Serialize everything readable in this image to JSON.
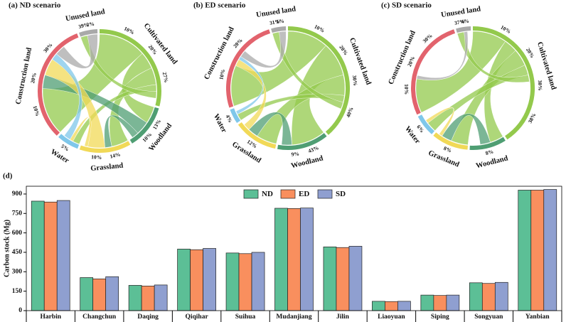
{
  "chart_data": [
    {
      "type": "chord",
      "title": "(a) ND scenario",
      "sectors": [
        {
          "name": "Cultivated land",
          "color": "#93c94c",
          "value": 30,
          "tick_labels": [
            "10%",
            "20%",
            "27%"
          ]
        },
        {
          "name": "Woodland",
          "color": "#4f9e73",
          "value": 12,
          "tick_labels": [
            "13%",
            "10%"
          ]
        },
        {
          "name": "Grassland",
          "color": "#f1d957",
          "value": 14,
          "tick_labels": [
            "14%",
            "10%"
          ]
        },
        {
          "name": "Water",
          "color": "#7fc7ea",
          "value": 6,
          "tick_labels": [
            "5%"
          ]
        },
        {
          "name": "Construction land",
          "color": "#e2636d",
          "value": 33,
          "tick_labels": [
            "10%",
            "20%",
            "30%"
          ]
        },
        {
          "name": "Unused land",
          "color": "#a9a9a9",
          "value": 5,
          "tick_labels": [
            "39%",
            "2%"
          ]
        }
      ],
      "flows": [
        {
          "from": 0,
          "to": 4,
          "value": 14
        },
        {
          "from": 0,
          "to": 1,
          "value": 5
        },
        {
          "from": 0,
          "to": 2,
          "value": 5
        },
        {
          "from": 0,
          "to": 3,
          "value": 2
        },
        {
          "from": 0,
          "to": 5,
          "value": 2
        },
        {
          "from": 1,
          "to": 4,
          "value": 4
        },
        {
          "from": 1,
          "to": 2,
          "value": 2
        },
        {
          "from": 2,
          "to": 4,
          "value": 5
        },
        {
          "from": 2,
          "to": 3,
          "value": 1
        },
        {
          "from": 3,
          "to": 4,
          "value": 2
        },
        {
          "from": 5,
          "to": 4,
          "value": 3
        }
      ]
    },
    {
      "type": "chord",
      "title": "(b) ED scenario",
      "sectors": [
        {
          "name": "Cultivated land",
          "color": "#93c94c",
          "value": 40,
          "tick_labels": [
            "10%",
            "20%",
            "30%",
            "40%"
          ]
        },
        {
          "name": "Woodland",
          "color": "#4f9e73",
          "value": 14,
          "tick_labels": [
            "43%",
            "9%"
          ]
        },
        {
          "name": "Grassland",
          "color": "#f1d957",
          "value": 12,
          "tick_labels": [
            "12%"
          ]
        },
        {
          "name": "Water",
          "color": "#7fc7ea",
          "value": 4,
          "tick_labels": [
            "4%"
          ]
        },
        {
          "name": "Construction land",
          "color": "#e2636d",
          "value": 26,
          "tick_labels": [
            "10%",
            "20%"
          ]
        },
        {
          "name": "Unused land",
          "color": "#a9a9a9",
          "value": 4,
          "tick_labels": [
            "31%",
            "1%"
          ]
        }
      ],
      "flows": [
        {
          "from": 0,
          "to": 4,
          "value": 12
        },
        {
          "from": 0,
          "to": 1,
          "value": 10
        },
        {
          "from": 0,
          "to": 2,
          "value": 6
        },
        {
          "from": 0,
          "to": 3,
          "value": 2
        },
        {
          "from": 0,
          "to": 5,
          "value": 2
        },
        {
          "from": 1,
          "to": 2,
          "value": 3
        },
        {
          "from": 2,
          "to": 4,
          "value": 2
        },
        {
          "from": 3,
          "to": 4,
          "value": 1
        },
        {
          "from": 5,
          "to": 4,
          "value": 2
        }
      ]
    },
    {
      "type": "chord",
      "title": "(c) SD scenario",
      "sectors": [
        {
          "name": "Cultivated land",
          "color": "#93c94c",
          "value": 42,
          "tick_labels": [
            "10%",
            "20%",
            "30%",
            "38%"
          ]
        },
        {
          "name": "Woodland",
          "color": "#4f9e73",
          "value": 10,
          "tick_labels": [
            "8%"
          ]
        },
        {
          "name": "Grassland",
          "color": "#f1d957",
          "value": 10,
          "tick_labels": [
            "8%"
          ]
        },
        {
          "name": "Water",
          "color": "#7fc7ea",
          "value": 6,
          "tick_labels": [
            "6%"
          ]
        },
        {
          "name": "Construction land",
          "color": "#e2636d",
          "value": 28,
          "tick_labels": [
            "10%",
            "20%",
            "30%"
          ]
        },
        {
          "name": "Unused land",
          "color": "#a9a9a9",
          "value": 4,
          "tick_labels": [
            "37%",
            "4%"
          ]
        }
      ],
      "flows": [
        {
          "from": 0,
          "to": 4,
          "value": 10
        },
        {
          "from": 0,
          "to": 1,
          "value": 4
        },
        {
          "from": 0,
          "to": 2,
          "value": 5
        },
        {
          "from": 0,
          "to": 3,
          "value": 3
        },
        {
          "from": 0,
          "to": 5,
          "value": 2
        },
        {
          "from": 1,
          "to": 2,
          "value": 3
        },
        {
          "from": 2,
          "to": 3,
          "value": 1
        },
        {
          "from": 5,
          "to": 4,
          "value": 1
        }
      ]
    },
    {
      "type": "bar",
      "title": "(d)",
      "ylabel": "Carbon stock (Mg)",
      "categories": [
        "Harbin",
        "Changchun",
        "Daqing",
        "Qiqihar",
        "Suihua",
        "Mudanjiang",
        "Jilin",
        "Liaoyuan",
        "Siping",
        "Songyuan",
        "Yanbian"
      ],
      "series": [
        {
          "name": "ND",
          "color": "#5cbf96",
          "values": [
            845,
            255,
            195,
            475,
            445,
            790,
            492,
            72,
            120,
            215,
            930
          ]
        },
        {
          "name": "ED",
          "color": "#f98f5e",
          "values": [
            838,
            245,
            190,
            470,
            440,
            788,
            487,
            70,
            117,
            210,
            930
          ]
        },
        {
          "name": "SD",
          "color": "#8f9fd0",
          "values": [
            850,
            262,
            198,
            480,
            450,
            792,
            497,
            72,
            120,
            218,
            935
          ]
        }
      ],
      "ylim": [
        0,
        960
      ],
      "yticks": [
        0,
        150,
        300,
        450,
        600,
        750,
        900
      ],
      "legend": "top"
    }
  ]
}
